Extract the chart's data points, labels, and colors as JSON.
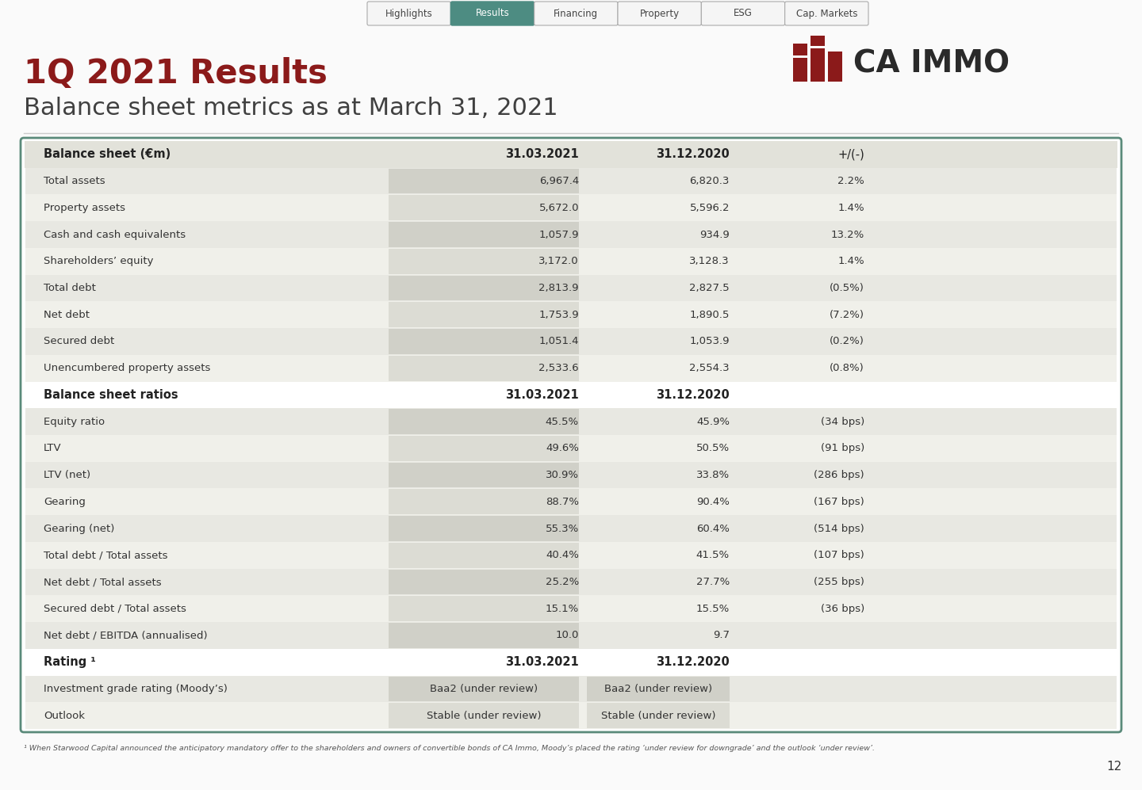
{
  "title1": "1Q 2021 Results",
  "title2": "Balance sheet metrics as at March 31, 2021",
  "title1_color": "#8B1A1A",
  "title2_color": "#404040",
  "bg_color": "#FAFAFA",
  "table_border_color": "#5a8a7a",
  "nav_tabs": [
    "Highlights",
    "Results",
    "Financing",
    "Property",
    "ESG",
    "Cap. Markets"
  ],
  "nav_active": "Results",
  "nav_active_color": "#4d8c82",
  "nav_inactive_color": "#f5f5f5",
  "page_number": "12",
  "sections": [
    {
      "type": "header",
      "label": "Balance sheet (€m)",
      "col1": "31.03.2021",
      "col2": "31.12.2020",
      "col3": "+/(-)"
    },
    {
      "type": "data",
      "shade": true,
      "label": "Total assets",
      "col1": "6,967.4",
      "col2": "6,820.3",
      "col3": "2.2%"
    },
    {
      "type": "data",
      "shade": false,
      "label": "Property assets",
      "col1": "5,672.0",
      "col2": "5,596.2",
      "col3": "1.4%"
    },
    {
      "type": "data",
      "shade": true,
      "label": "Cash and cash equivalents",
      "col1": "1,057.9",
      "col2": "934.9",
      "col3": "13.2%"
    },
    {
      "type": "data",
      "shade": false,
      "label": "Shareholders’ equity",
      "col1": "3,172.0",
      "col2": "3,128.3",
      "col3": "1.4%"
    },
    {
      "type": "data",
      "shade": true,
      "label": "Total debt",
      "col1": "2,813.9",
      "col2": "2,827.5",
      "col3": "(0.5%)"
    },
    {
      "type": "data",
      "shade": false,
      "label": "Net debt",
      "col1": "1,753.9",
      "col2": "1,890.5",
      "col3": "(7.2%)"
    },
    {
      "type": "data",
      "shade": true,
      "label": "Secured debt",
      "col1": "1,051.4",
      "col2": "1,053.9",
      "col3": "(0.2%)"
    },
    {
      "type": "data",
      "shade": false,
      "label": "Unencumbered property assets",
      "col1": "2,533.6",
      "col2": "2,554.3",
      "col3": "(0.8%)"
    },
    {
      "type": "section_header",
      "shade": false,
      "label": "Balance sheet ratios",
      "col1": "31.03.2021",
      "col2": "31.12.2020",
      "col3": ""
    },
    {
      "type": "data",
      "shade": true,
      "label": "Equity ratio",
      "col1": "45.5%",
      "col2": "45.9%",
      "col3": "(34 bps)"
    },
    {
      "type": "data",
      "shade": false,
      "label": "LTV",
      "col1": "49.6%",
      "col2": "50.5%",
      "col3": "(91 bps)"
    },
    {
      "type": "data",
      "shade": true,
      "label": "LTV (net)",
      "col1": "30.9%",
      "col2": "33.8%",
      "col3": "(286 bps)"
    },
    {
      "type": "data",
      "shade": false,
      "label": "Gearing",
      "col1": "88.7%",
      "col2": "90.4%",
      "col3": "(167 bps)"
    },
    {
      "type": "data",
      "shade": true,
      "label": "Gearing (net)",
      "col1": "55.3%",
      "col2": "60.4%",
      "col3": "(514 bps)"
    },
    {
      "type": "data",
      "shade": false,
      "label": "Total debt / Total assets",
      "col1": "40.4%",
      "col2": "41.5%",
      "col3": "(107 bps)"
    },
    {
      "type": "data",
      "shade": true,
      "label": "Net debt / Total assets",
      "col1": "25.2%",
      "col2": "27.7%",
      "col3": "(255 bps)"
    },
    {
      "type": "data",
      "shade": false,
      "label": "Secured debt / Total assets",
      "col1": "15.1%",
      "col2": "15.5%",
      "col3": "(36 bps)"
    },
    {
      "type": "data",
      "shade": true,
      "label": "Net debt / EBITDA (annualised)",
      "col1": "10.0",
      "col2": "9.7",
      "col3": ""
    },
    {
      "type": "section_header",
      "shade": false,
      "label": "Rating ¹",
      "col1": "31.03.2021",
      "col2": "31.12.2020",
      "col3": ""
    },
    {
      "type": "data_center",
      "shade": true,
      "label": "Investment grade rating (Moody’s)",
      "col1": "Baa2 (under review)",
      "col2": "Baa2 (under review)",
      "col3": ""
    },
    {
      "type": "data_center",
      "shade": false,
      "label": "Outlook",
      "col1": "Stable (under review)",
      "col2": "Stable (under review)",
      "col3": ""
    }
  ],
  "footnote": "¹ When Starwood Capital announced the anticipatory mandatory offer to the shareholders and owners of convertible bonds of CA Immo, Moody’s placed the rating ‘under review for downgrade’ and the outlook ‘under review’.",
  "shaded_dark": "#d0d0c8",
  "shaded_light": "#dcdcd4",
  "row_bg_dark": "#e8e8e2",
  "row_bg_light": "#f0f0ea",
  "header_bg": "#e2e2da"
}
